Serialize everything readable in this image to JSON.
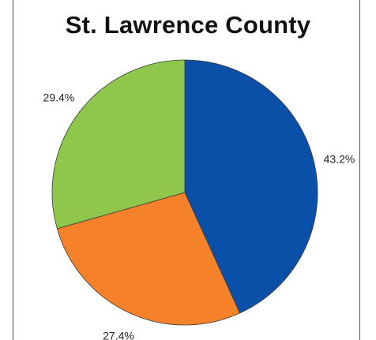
{
  "chart_data": {
    "type": "pie",
    "title": "St. Lawrence County",
    "slices": [
      {
        "label": "43.2%",
        "value": 43.2,
        "color": "#0a4fa8"
      },
      {
        "label": "27.4%",
        "value": 27.4,
        "color": "#f5822a"
      },
      {
        "label": "29.4%",
        "value": 29.4,
        "color": "#8fc64c"
      }
    ],
    "start_angle": "12 o'clock",
    "direction": "clockwise",
    "legend": "none"
  }
}
